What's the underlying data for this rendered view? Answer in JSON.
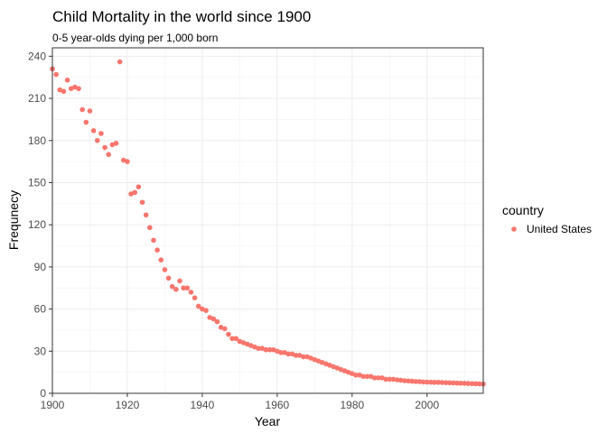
{
  "chart_data": {
    "type": "scatter",
    "title": "Child Mortality in the world since 1900",
    "subtitle": "0-5 year-olds dying per 1,000 born",
    "xlabel": "Year",
    "ylabel": "Frequnecy",
    "xlim": [
      1900,
      2015
    ],
    "ylim": [
      0,
      246
    ],
    "x_ticks": [
      1900,
      1920,
      1940,
      1960,
      1980,
      2000
    ],
    "y_ticks": [
      0,
      30,
      60,
      90,
      120,
      150,
      180,
      210,
      240
    ],
    "grid": true,
    "legend": {
      "title": "country",
      "position": "right"
    },
    "series": [
      {
        "name": "United States",
        "color": "#F8766D",
        "x": [
          1900,
          1901,
          1902,
          1903,
          1904,
          1905,
          1906,
          1907,
          1908,
          1909,
          1910,
          1911,
          1912,
          1913,
          1914,
          1915,
          1916,
          1917,
          1918,
          1919,
          1920,
          1921,
          1922,
          1923,
          1924,
          1925,
          1926,
          1927,
          1928,
          1929,
          1930,
          1931,
          1932,
          1933,
          1934,
          1935,
          1936,
          1937,
          1938,
          1939,
          1940,
          1941,
          1942,
          1943,
          1944,
          1945,
          1946,
          1947,
          1948,
          1949,
          1950,
          1951,
          1952,
          1953,
          1954,
          1955,
          1956,
          1957,
          1958,
          1959,
          1960,
          1961,
          1962,
          1963,
          1964,
          1965,
          1966,
          1967,
          1968,
          1969,
          1970,
          1971,
          1972,
          1973,
          1974,
          1975,
          1976,
          1977,
          1978,
          1979,
          1980,
          1981,
          1982,
          1983,
          1984,
          1985,
          1986,
          1987,
          1988,
          1989,
          1990,
          1991,
          1992,
          1993,
          1994,
          1995,
          1996,
          1997,
          1998,
          1999,
          2000,
          2001,
          2002,
          2003,
          2004,
          2005,
          2006,
          2007,
          2008,
          2009,
          2010,
          2011,
          2012,
          2013,
          2014,
          2015
        ],
        "y": [
          231,
          227,
          216,
          215,
          223,
          217,
          218,
          217,
          202,
          193,
          201,
          187,
          180,
          185,
          175,
          170,
          177,
          178,
          236,
          166,
          165,
          142,
          143,
          147,
          136,
          127,
          118,
          109,
          102,
          95,
          88,
          82,
          76,
          74,
          80,
          75,
          75,
          72,
          68,
          62,
          60,
          59,
          54,
          53,
          51,
          47,
          46,
          42,
          39,
          39,
          37,
          36,
          35,
          34,
          33,
          32,
          32,
          31,
          31,
          31,
          30,
          29,
          29,
          28,
          28,
          27,
          27,
          26,
          26,
          25,
          24,
          23,
          22,
          21,
          20,
          19,
          18,
          17,
          16,
          15,
          14,
          13,
          13,
          12,
          12,
          12,
          11,
          11,
          11,
          10,
          10,
          10,
          9.6,
          9.3,
          9,
          8.8,
          8.6,
          8.4,
          8.3,
          8.1,
          8,
          7.9,
          7.8,
          7.8,
          7.7,
          7.6,
          7.5,
          7.4,
          7.3,
          7.2,
          7.1,
          7,
          6.9,
          6.8,
          6.7,
          6.6
        ]
      }
    ]
  }
}
